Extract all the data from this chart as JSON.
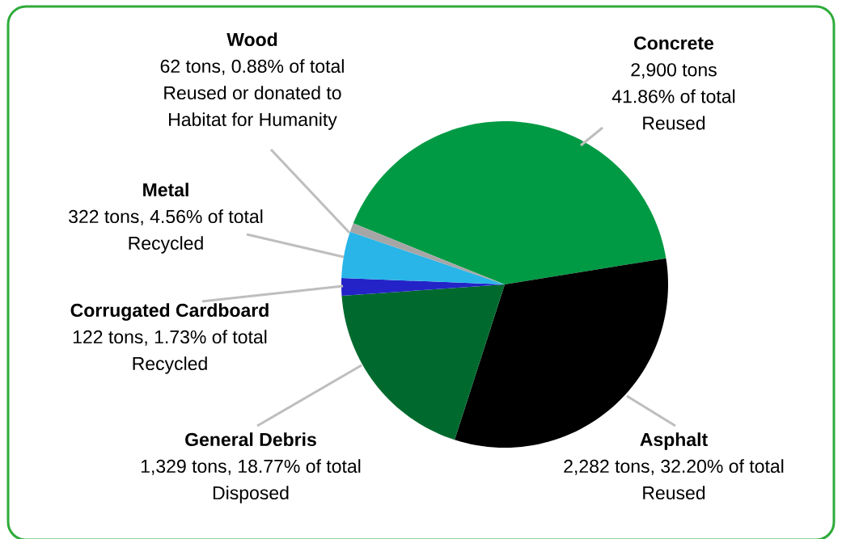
{
  "chart_data": {
    "type": "pie",
    "categories": [
      "Concrete",
      "Asphalt",
      "General Debris",
      "Corrugated Cardboard",
      "Metal",
      "Wood"
    ],
    "values": [
      2900,
      2282,
      1329,
      122,
      322,
      62
    ],
    "colors": [
      "#009a44",
      "#000000",
      "#006a2e",
      "#2323c8",
      "#29b5e8",
      "#a6a6a6"
    ],
    "value_labels": [
      "2,900 tons 41.86% of total Reused",
      "2,282 tons, 32.20% of total Reused",
      "1,329 tons, 18.77% of total Disposed",
      "122 tons, 1.73% of total Recycled",
      "322 tons, 4.56% of total Recycled",
      "62 tons, 0.88% of total Reused or donated to Habitat for Humanity"
    ]
  }
}
